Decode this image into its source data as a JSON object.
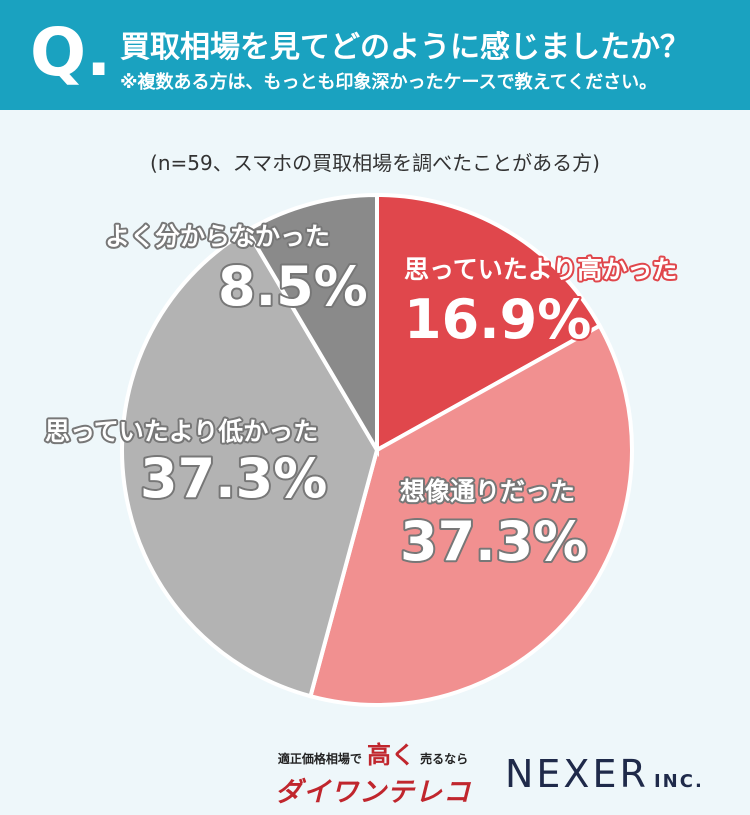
{
  "header": {
    "mark": "Q.",
    "title": "買取相場を見てどのように感じましたか？",
    "note": "※複数ある方は、もっとも印象深かったケースで教えてください。"
  },
  "chart_data": {
    "type": "pie",
    "subtitle": "(n=59、スマホの買取相場を調べたことがある方)",
    "categories": [
      "思っていたより高かった",
      "想像通りだった",
      "思っていたより低かった",
      "よく分からなかった"
    ],
    "values": [
      16.9,
      37.3,
      37.3,
      8.5
    ],
    "value_labels": [
      "16.9%",
      "37.3%",
      "37.3%",
      "8.5%"
    ],
    "colors": [
      "#e0474c",
      "#f19090",
      "#b3b3b3",
      "#8a8a8a"
    ]
  },
  "footer": {
    "tagline_a": "適正価格相場で",
    "tagline_b": "高く",
    "tagline_c": "売るなら",
    "brand": "ダイワンテレコム",
    "company": "NEXER",
    "company_suffix": "INC."
  }
}
